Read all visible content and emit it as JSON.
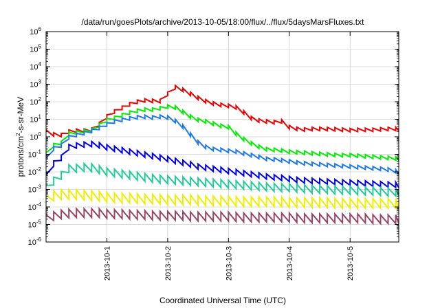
{
  "chart_data": {
    "type": "line",
    "title": "/data/run/goesPlots/archive/2013-10-05/18:00/flux/../flux/5daysMarsFluxes.txt",
    "xlabel": "Coordinated Universal Time (UTC)",
    "ylabel_main": "protons/cm",
    "ylabel_sup": "2",
    "ylabel_rest": "-s-sr-MeV",
    "y_scale": "log",
    "ylim_exponents": [
      -6,
      6
    ],
    "xlim_days": [
      0,
      5.8
    ],
    "x_ticks": [
      {
        "label": "2013-10-1",
        "day": 1
      },
      {
        "label": "2013-10-2",
        "day": 2
      },
      {
        "label": "2013-10-3",
        "day": 3
      },
      {
        "label": "2013-10-4",
        "day": 4
      },
      {
        "label": "2013-10-5",
        "day": 5
      }
    ],
    "y_ticks": [
      {
        "base": "10",
        "exp": "-6"
      },
      {
        "base": "10",
        "exp": "-5"
      },
      {
        "base": "10",
        "exp": "-4"
      },
      {
        "base": "10",
        "exp": "-3"
      },
      {
        "base": "10",
        "exp": "-2"
      },
      {
        "base": "10",
        "exp": "-1"
      },
      {
        "base": "10",
        "exp": "0"
      },
      {
        "base": "10",
        "exp": "1"
      },
      {
        "base": "10",
        "exp": "2"
      },
      {
        "base": "10",
        "exp": "3"
      },
      {
        "base": "10",
        "exp": "4"
      },
      {
        "base": "10",
        "exp": "5"
      },
      {
        "base": "10",
        "exp": "6"
      }
    ],
    "grid": true,
    "sawtooth_period_days": 0.125,
    "series": [
      {
        "color": "#ee0000",
        "points": [
          [
            0,
            0.3
          ],
          [
            0.08,
            0.2
          ],
          [
            0.15,
            0.1
          ],
          [
            0.25,
            0.1
          ],
          [
            0.3,
            0.2
          ],
          [
            0.38,
            0.3
          ],
          [
            0.5,
            0.35
          ],
          [
            0.62,
            0.35
          ],
          [
            0.72,
            0.35
          ],
          [
            0.8,
            0.5
          ],
          [
            0.9,
            0.8
          ],
          [
            1.0,
            1.15
          ],
          [
            1.1,
            1.4
          ],
          [
            1.25,
            1.65
          ],
          [
            1.4,
            1.9
          ],
          [
            1.55,
            2.05
          ],
          [
            1.7,
            2.1
          ],
          [
            1.8,
            2.0
          ],
          [
            1.9,
            2.05
          ],
          [
            2.0,
            2.45
          ],
          [
            2.1,
            2.85
          ],
          [
            2.2,
            2.75
          ],
          [
            2.3,
            2.6
          ],
          [
            2.45,
            2.3
          ],
          [
            2.6,
            2.05
          ],
          [
            2.75,
            1.9
          ],
          [
            2.9,
            1.8
          ],
          [
            3.05,
            1.75
          ],
          [
            3.15,
            1.65
          ],
          [
            3.25,
            1.4
          ],
          [
            3.4,
            1.0
          ],
          [
            3.55,
            0.9
          ],
          [
            3.7,
            0.85
          ],
          [
            3.8,
            0.82
          ],
          [
            3.9,
            0.9
          ],
          [
            4.0,
            0.55
          ],
          [
            4.2,
            0.4
          ],
          [
            4.4,
            0.45
          ],
          [
            4.6,
            0.45
          ],
          [
            4.8,
            0.42
          ],
          [
            5.0,
            0.38
          ],
          [
            5.2,
            0.4
          ],
          [
            5.4,
            0.4
          ],
          [
            5.6,
            0.45
          ],
          [
            5.8,
            0.45
          ]
        ],
        "amp": 0.2
      },
      {
        "color": "#00ee00",
        "points": [
          [
            0,
            -1.0
          ],
          [
            0.1,
            -0.5
          ],
          [
            0.2,
            -0.4
          ],
          [
            0.3,
            -0.3
          ],
          [
            0.38,
            0.2
          ],
          [
            0.5,
            0.25
          ],
          [
            0.62,
            0.3
          ],
          [
            0.72,
            0.35
          ],
          [
            0.82,
            0.45
          ],
          [
            0.9,
            0.75
          ],
          [
            1.0,
            0.95
          ],
          [
            1.15,
            1.1
          ],
          [
            1.3,
            1.3
          ],
          [
            1.45,
            1.45
          ],
          [
            1.6,
            1.55
          ],
          [
            1.75,
            1.55
          ],
          [
            1.85,
            1.6
          ],
          [
            1.95,
            1.7
          ],
          [
            2.05,
            1.75
          ],
          [
            2.15,
            1.65
          ],
          [
            2.3,
            1.3
          ],
          [
            2.45,
            1.0
          ],
          [
            2.6,
            0.9
          ],
          [
            2.75,
            0.75
          ],
          [
            2.9,
            0.6
          ],
          [
            3.0,
            0.55
          ],
          [
            3.15,
            0.1
          ],
          [
            3.3,
            -0.25
          ],
          [
            3.45,
            -0.5
          ],
          [
            3.6,
            -0.7
          ],
          [
            3.8,
            -0.75
          ],
          [
            4.0,
            -0.85
          ],
          [
            4.2,
            -0.9
          ],
          [
            4.4,
            -0.95
          ],
          [
            4.6,
            -1.0
          ],
          [
            4.8,
            -1.05
          ],
          [
            5.0,
            -1.05
          ],
          [
            5.2,
            -1.1
          ],
          [
            5.4,
            -1.15
          ],
          [
            5.6,
            -1.2
          ],
          [
            5.8,
            -1.25
          ]
        ],
        "amp": 0.2
      },
      {
        "color": "#1e78ee",
        "points": [
          [
            0,
            -1.3
          ],
          [
            0.1,
            -0.7
          ],
          [
            0.2,
            -0.55
          ],
          [
            0.3,
            -0.45
          ],
          [
            0.38,
            0.0
          ],
          [
            0.5,
            0.1
          ],
          [
            0.62,
            0.2
          ],
          [
            0.72,
            0.3
          ],
          [
            0.82,
            0.4
          ],
          [
            0.9,
            0.55
          ],
          [
            1.0,
            0.7
          ],
          [
            1.15,
            0.9
          ],
          [
            1.3,
            1.0
          ],
          [
            1.45,
            1.1
          ],
          [
            1.6,
            1.15
          ],
          [
            1.75,
            1.1
          ],
          [
            1.85,
            1.15
          ],
          [
            1.95,
            1.15
          ],
          [
            2.05,
            1.05
          ],
          [
            2.15,
            0.85
          ],
          [
            2.3,
            0.45
          ],
          [
            2.45,
            -0.2
          ],
          [
            2.6,
            -0.55
          ],
          [
            2.75,
            -0.7
          ],
          [
            2.9,
            -0.75
          ],
          [
            3.0,
            -0.8
          ],
          [
            3.15,
            -0.85
          ],
          [
            3.3,
            -1.0
          ],
          [
            3.45,
            -1.1
          ],
          [
            3.6,
            -1.25
          ],
          [
            3.8,
            -1.3
          ],
          [
            4.0,
            -1.4
          ],
          [
            4.2,
            -1.5
          ],
          [
            4.4,
            -1.55
          ],
          [
            4.6,
            -1.6
          ],
          [
            4.8,
            -1.65
          ],
          [
            5.0,
            -1.7
          ],
          [
            5.2,
            -1.75
          ],
          [
            5.4,
            -1.8
          ],
          [
            5.6,
            -1.85
          ],
          [
            5.8,
            -2.0
          ]
        ],
        "amp": 0.2
      },
      {
        "color": "#0000ee",
        "points": [
          [
            0,
            -2.3
          ],
          [
            0.1,
            -1.6
          ],
          [
            0.2,
            -1.3
          ],
          [
            0.3,
            -1.1
          ],
          [
            0.38,
            -0.55
          ],
          [
            0.5,
            -0.5
          ],
          [
            0.62,
            -0.45
          ],
          [
            0.72,
            -0.4
          ],
          [
            0.82,
            -0.45
          ],
          [
            0.9,
            -0.5
          ],
          [
            1.0,
            -0.6
          ],
          [
            1.15,
            -0.7
          ],
          [
            1.3,
            -0.8
          ],
          [
            1.45,
            -0.9
          ],
          [
            1.6,
            -1.0
          ],
          [
            1.75,
            -1.1
          ],
          [
            1.9,
            -1.2
          ],
          [
            2.05,
            -1.3
          ],
          [
            2.2,
            -1.45
          ],
          [
            2.35,
            -1.55
          ],
          [
            2.5,
            -1.7
          ],
          [
            2.7,
            -1.8
          ],
          [
            2.9,
            -1.9
          ],
          [
            3.1,
            -2.0
          ],
          [
            3.3,
            -2.1
          ],
          [
            3.5,
            -2.2
          ],
          [
            3.7,
            -2.3
          ],
          [
            3.9,
            -2.35
          ],
          [
            4.1,
            -2.45
          ],
          [
            4.3,
            -2.5
          ],
          [
            4.6,
            -2.55
          ],
          [
            4.9,
            -2.6
          ],
          [
            5.2,
            -2.65
          ],
          [
            5.5,
            -2.7
          ],
          [
            5.8,
            -2.75
          ]
        ],
        "amp": 0.3
      },
      {
        "color": "#22cc99",
        "points": [
          [
            0,
            -3.0
          ],
          [
            0.1,
            -2.6
          ],
          [
            0.2,
            -2.3
          ],
          [
            0.3,
            -2.1
          ],
          [
            0.38,
            -1.8
          ],
          [
            0.5,
            -1.8
          ],
          [
            0.62,
            -1.75
          ],
          [
            0.72,
            -1.75
          ],
          [
            0.82,
            -1.8
          ],
          [
            0.9,
            -1.9
          ],
          [
            1.0,
            -2.0
          ],
          [
            1.2,
            -2.1
          ],
          [
            1.4,
            -2.2
          ],
          [
            1.6,
            -2.3
          ],
          [
            1.8,
            -2.4
          ],
          [
            2.0,
            -2.45
          ],
          [
            2.2,
            -2.5
          ],
          [
            2.4,
            -2.55
          ],
          [
            2.6,
            -2.6
          ],
          [
            2.8,
            -2.65
          ],
          [
            3.0,
            -2.7
          ],
          [
            3.2,
            -2.75
          ],
          [
            3.4,
            -2.8
          ],
          [
            3.6,
            -2.85
          ],
          [
            3.8,
            -2.9
          ],
          [
            4.0,
            -2.9
          ],
          [
            4.2,
            -2.95
          ],
          [
            4.4,
            -3.0
          ],
          [
            4.6,
            -3.0
          ],
          [
            4.8,
            -3.05
          ],
          [
            5.0,
            -3.05
          ],
          [
            5.2,
            -3.1
          ],
          [
            5.4,
            -3.1
          ],
          [
            5.6,
            -3.15
          ],
          [
            5.8,
            -3.15
          ]
        ],
        "amp": 0.45
      },
      {
        "color": "#eeee00",
        "points": [
          [
            0,
            -3.6
          ],
          [
            0.1,
            -3.4
          ],
          [
            0.2,
            -3.3
          ],
          [
            0.3,
            -3.3
          ],
          [
            0.5,
            -3.3
          ],
          [
            0.7,
            -3.35
          ],
          [
            0.9,
            -3.4
          ],
          [
            1.0,
            -3.45
          ],
          [
            1.2,
            -3.5
          ],
          [
            1.4,
            -3.5
          ],
          [
            1.6,
            -3.55
          ],
          [
            1.8,
            -3.55
          ],
          [
            2.0,
            -3.6
          ],
          [
            2.2,
            -3.6
          ],
          [
            2.4,
            -3.6
          ],
          [
            2.6,
            -3.65
          ],
          [
            2.8,
            -3.65
          ],
          [
            3.0,
            -3.65
          ],
          [
            3.2,
            -3.7
          ],
          [
            3.4,
            -3.7
          ],
          [
            3.6,
            -3.7
          ],
          [
            3.8,
            -3.7
          ],
          [
            4.0,
            -3.75
          ],
          [
            4.2,
            -3.75
          ],
          [
            4.4,
            -3.75
          ],
          [
            4.6,
            -3.75
          ],
          [
            4.8,
            -3.8
          ],
          [
            5.0,
            -3.8
          ],
          [
            5.2,
            -3.8
          ],
          [
            5.4,
            -3.8
          ],
          [
            5.6,
            -3.8
          ],
          [
            5.8,
            -3.8
          ]
        ],
        "amp": 0.55
      },
      {
        "color": "#994466",
        "points": [
          [
            0,
            -4.7
          ],
          [
            0.1,
            -4.55
          ],
          [
            0.2,
            -4.45
          ],
          [
            0.3,
            -4.4
          ],
          [
            0.5,
            -4.35
          ],
          [
            0.7,
            -4.35
          ],
          [
            0.9,
            -4.35
          ],
          [
            1.0,
            -4.4
          ],
          [
            1.2,
            -4.4
          ],
          [
            1.4,
            -4.45
          ],
          [
            1.6,
            -4.45
          ],
          [
            1.8,
            -4.5
          ],
          [
            2.0,
            -4.5
          ],
          [
            2.2,
            -4.5
          ],
          [
            2.4,
            -4.55
          ],
          [
            2.6,
            -4.55
          ],
          [
            2.8,
            -4.55
          ],
          [
            3.0,
            -4.55
          ],
          [
            3.2,
            -4.6
          ],
          [
            3.4,
            -4.6
          ],
          [
            3.6,
            -4.6
          ],
          [
            3.8,
            -4.6
          ],
          [
            4.0,
            -4.6
          ],
          [
            4.2,
            -4.65
          ],
          [
            4.4,
            -4.65
          ],
          [
            4.6,
            -4.65
          ],
          [
            4.8,
            -4.65
          ],
          [
            5.0,
            -4.65
          ],
          [
            5.2,
            -4.65
          ],
          [
            5.4,
            -4.7
          ],
          [
            5.6,
            -4.7
          ],
          [
            5.8,
            -4.7
          ]
        ],
        "amp": 0.5
      }
    ]
  }
}
